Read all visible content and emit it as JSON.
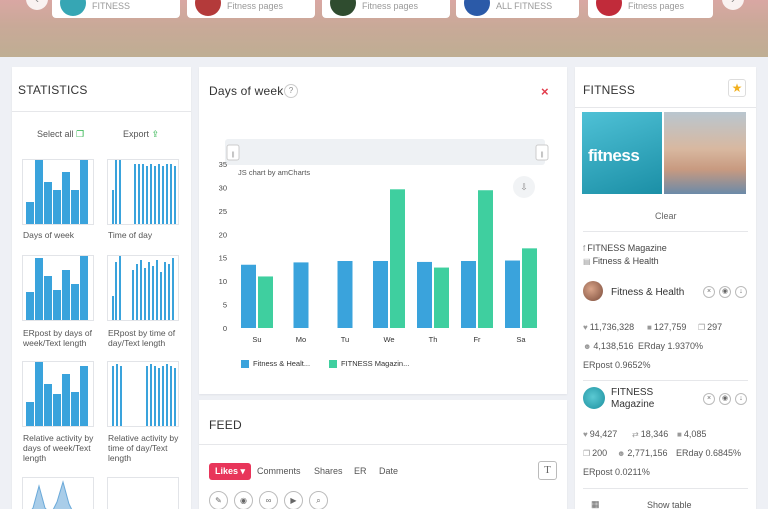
{
  "topbar": {
    "cards": [
      {
        "label": "FITNESS",
        "thumb_color": "#36a6b4"
      },
      {
        "label": "Fitness pages",
        "thumb_color": "#b43a3a"
      },
      {
        "label": "Fitness pages",
        "thumb_color": "#2f4c2f"
      },
      {
        "label": "ALL FITNESS",
        "thumb_color": "#2b5aa8"
      },
      {
        "label": "Fitness pages",
        "thumb_color": "#c12b3a"
      }
    ],
    "arrow_left": "‹",
    "arrow_right": "›"
  },
  "statistics": {
    "title": "STATISTICS",
    "select_all": "Select all",
    "export": "Export",
    "charts": [
      {
        "caption": "Days of week"
      },
      {
        "caption": "Time of day"
      },
      {
        "caption": "ERpost by days of week/Text length"
      },
      {
        "caption": "ERpost by time of day/Text length"
      },
      {
        "caption": "Relative activity by days of week/Text length"
      },
      {
        "caption": "Relative activity by time of day/Text length"
      }
    ]
  },
  "chart_panel": {
    "title": "Days of week",
    "help": "?",
    "close": "×",
    "credit": "JS chart by amCharts",
    "legend": [
      "Fitness & Healt...",
      "FITNESS Magazin..."
    ]
  },
  "chart_data": {
    "type": "bar",
    "title": "Days of week",
    "categories": [
      "Su",
      "Mo",
      "Tu",
      "We",
      "Th",
      "Fr",
      "Sa"
    ],
    "series": [
      {
        "name": "Fitness & Health",
        "values": [
          13.5,
          14,
          null,
          14.3,
          14.1,
          14.3,
          14.4
        ],
        "color": "#3aa3dc"
      },
      {
        "name": "FITNESS Magazine",
        "values": [
          11,
          null,
          null,
          29.6,
          12.9,
          29.4,
          17
        ],
        "color": "#3fcf9f"
      }
    ],
    "extra": {
      "tu_fitness_health": 14.3
    },
    "ylim": [
      0,
      35
    ],
    "yticks": [
      "0",
      "5",
      "10",
      "15",
      "20",
      "25",
      "30",
      "35"
    ],
    "grid": false,
    "legend_position": "bottom-left"
  },
  "feed": {
    "title": "FEED",
    "tabs": [
      "Likes",
      "Comments",
      "Shares",
      "ER",
      "Date"
    ],
    "text_btn": "T"
  },
  "fitness": {
    "title": "FITNESS",
    "image_label": "fitness",
    "clear": "Clear",
    "sources": [
      "FITNESS Magazine",
      "Fitness & Health"
    ],
    "pages": [
      {
        "name": "Fitness & Health",
        "likes": "11,736,328",
        "comments": "127,759",
        "shares": "297",
        "followers": "4,138,516",
        "erday": "ERday 1.9370%",
        "erpost": "ERpost 0.9652%"
      },
      {
        "name": "FITNESS Magazine",
        "likes": "94,427",
        "reposts": "18,346",
        "comments": "4,085",
        "shares": "200",
        "followers": "2,771,156",
        "erday": "ERday 0.6845%",
        "erpost": "ERpost 0.0211%"
      }
    ],
    "show_table": "Show table"
  },
  "colors": {
    "blue": "#3aa3dc",
    "green": "#3fcf9f",
    "accent": "#e8355a",
    "close": "#e23b4b"
  }
}
